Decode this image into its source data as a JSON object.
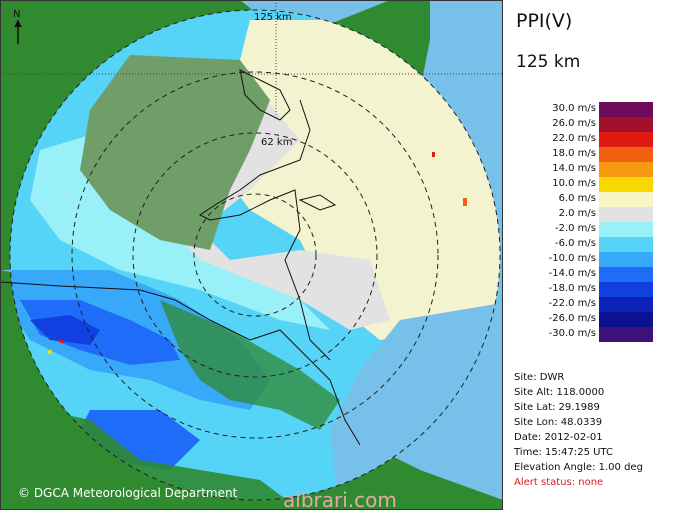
{
  "product": {
    "title": "PPI(V)",
    "range": "125 km"
  },
  "map": {
    "ring_labels": [
      "125 km",
      "62 km"
    ],
    "north_label": "N"
  },
  "legend": [
    {
      "label": "30.0 m/s",
      "color": "#6e0a5a"
    },
    {
      "label": "26.0 m/s",
      "color": "#a0102a"
    },
    {
      "label": "22.0 m/s",
      "color": "#e01a10"
    },
    {
      "label": "18.0 m/s",
      "color": "#f06010"
    },
    {
      "label": "14.0 m/s",
      "color": "#f89a10"
    },
    {
      "label": "10.0 m/s",
      "color": "#f8d800"
    },
    {
      "label": "6.0 m/s",
      "color": "#f8f4c4"
    },
    {
      "label": "2.0 m/s",
      "color": "#e2e2e2"
    },
    {
      "label": "-2.0 m/s",
      "color": "#9af0f8"
    },
    {
      "label": "-6.0 m/s",
      "color": "#56d4f8"
    },
    {
      "label": "-10.0 m/s",
      "color": "#38a8f8"
    },
    {
      "label": "-14.0 m/s",
      "color": "#1e6cf8"
    },
    {
      "label": "-18.0 m/s",
      "color": "#1040e0"
    },
    {
      "label": "-22.0 m/s",
      "color": "#0a22b8"
    },
    {
      "label": "-26.0 m/s",
      "color": "#0a1290"
    },
    {
      "label": "-30.0 m/s",
      "color": "#3a1278"
    }
  ],
  "site": {
    "site": "Site: DWR",
    "alt": "Site Alt: 118.0000",
    "lat": "Site Lat: 29.1989",
    "lon": "Site Lon: 48.0339",
    "date": "Date: 2012-02-01",
    "time": "Time: 15:47:25 UTC",
    "elevation": "Elevation Angle: 1.00 deg",
    "alert": "Alert status: none"
  },
  "footer": {
    "copyright": "© DGCA Meteorological Department",
    "watermark": "albrari.com"
  },
  "colors": {
    "sea": "#77c0ea",
    "land": "#2f8a30",
    "land_light": "#6f9e68",
    "ice": "#e2e2e2",
    "cream": "#f3f4cf"
  }
}
